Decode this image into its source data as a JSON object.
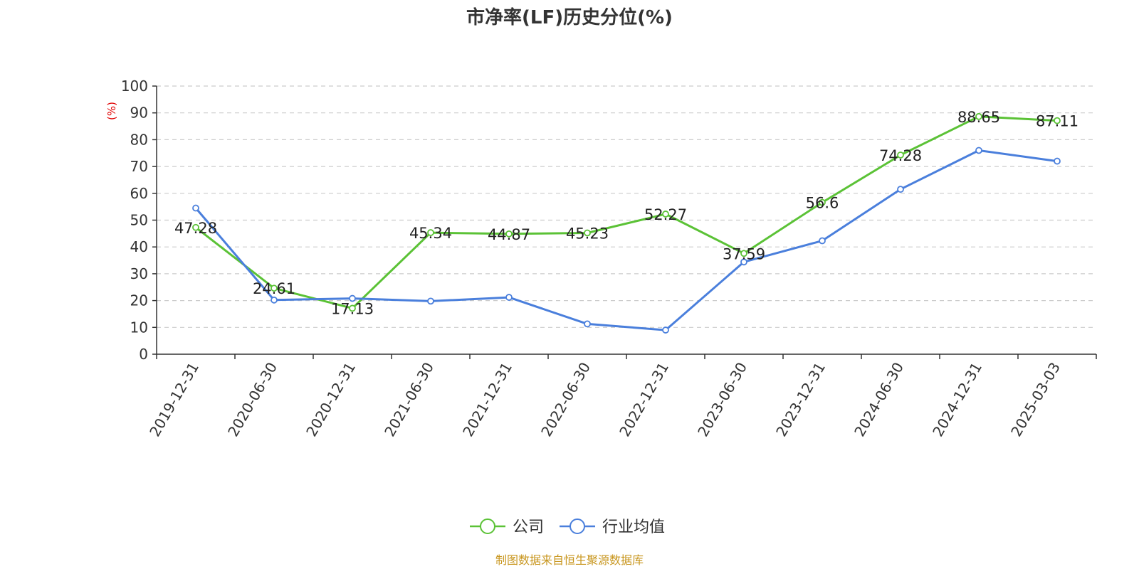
{
  "chart_data": {
    "type": "line",
    "title": "市净率(LF)历史分位(%)",
    "yunit": "(%)",
    "ylim": [
      0,
      100
    ],
    "yticks": [
      0,
      10,
      20,
      30,
      40,
      50,
      60,
      70,
      80,
      90,
      100
    ],
    "grid": true,
    "legend_position": "bottom",
    "categories": [
      "2019-12-31",
      "2020-06-30",
      "2020-12-31",
      "2021-06-30",
      "2021-12-31",
      "2022-06-30",
      "2022-12-31",
      "2023-06-30",
      "2023-12-31",
      "2024-06-30",
      "2024-12-31",
      "2025-03-03"
    ],
    "series": [
      {
        "name": "公司",
        "color": "#5bc236",
        "show_labels": true,
        "values": [
          47.28,
          24.61,
          17.13,
          45.34,
          44.87,
          45.23,
          52.27,
          37.59,
          56.6,
          74.28,
          88.65,
          87.11
        ]
      },
      {
        "name": "行业均值",
        "color": "#4a7fdc",
        "show_labels": false,
        "values": [
          54.5,
          20.2,
          20.8,
          19.8,
          21.2,
          11.3,
          9.0,
          34.4,
          42.3,
          61.5,
          76.0,
          72.0
        ]
      }
    ],
    "source": "制图数据来自恒生聚源数据库"
  }
}
